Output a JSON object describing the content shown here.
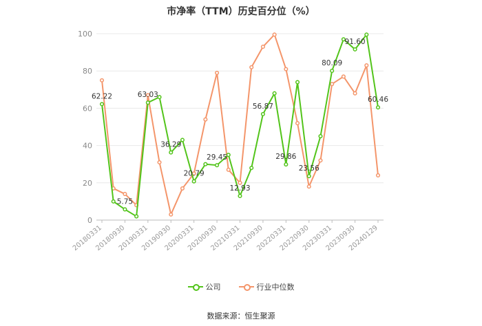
{
  "chart_data": {
    "type": "line",
    "title": "市净率（TTM）历史百分位（%）",
    "xlabel": "",
    "ylabel": "",
    "ylim": [
      0,
      100
    ],
    "yticks": [
      0,
      20,
      40,
      60,
      80,
      100
    ],
    "xtick_labels": [
      "20180331",
      "20180930",
      "20190331",
      "20190930",
      "20200331",
      "20200930",
      "20210331",
      "20210930",
      "20220331",
      "20220930",
      "20230331",
      "20230930",
      "20240129"
    ],
    "grid": true,
    "legend_position": "bottom",
    "series": [
      {
        "name": "公司",
        "color": "#52c41a",
        "values": [
          62.22,
          10,
          5.75,
          2,
          63.03,
          66,
          36.29,
          43,
          20.79,
          30,
          29.45,
          35,
          12.93,
          28,
          56.87,
          68,
          29.86,
          74,
          23.56,
          45,
          80.09,
          97,
          91.6,
          99.5,
          60.46
        ]
      },
      {
        "name": "行业中位数",
        "color": "#f4956a",
        "values": [
          75,
          17,
          14,
          8,
          67,
          31,
          3,
          17,
          25,
          54,
          79,
          27,
          20,
          82,
          93,
          99.5,
          81,
          52,
          18,
          32,
          73,
          77,
          68,
          83,
          24
        ]
      }
    ],
    "point_labels": [
      {
        "series": 0,
        "index": 0,
        "text": "62.22"
      },
      {
        "series": 0,
        "index": 2,
        "text": "5.75"
      },
      {
        "series": 0,
        "index": 4,
        "text": "63.03"
      },
      {
        "series": 0,
        "index": 6,
        "text": "36.29"
      },
      {
        "series": 0,
        "index": 8,
        "text": "20.79"
      },
      {
        "series": 0,
        "index": 10,
        "text": "29.45"
      },
      {
        "series": 0,
        "index": 12,
        "text": "12.93"
      },
      {
        "series": 0,
        "index": 14,
        "text": "56.87"
      },
      {
        "series": 0,
        "index": 16,
        "text": "29.86"
      },
      {
        "series": 0,
        "index": 18,
        "text": "23.56"
      },
      {
        "series": 0,
        "index": 20,
        "text": "80.09"
      },
      {
        "series": 0,
        "index": 22,
        "text": "91.60"
      },
      {
        "series": 0,
        "index": 24,
        "text": "60.46"
      }
    ]
  },
  "legend": {
    "company": "公司",
    "industry": "行业中位数"
  },
  "source": "数据来源：恒生聚源"
}
